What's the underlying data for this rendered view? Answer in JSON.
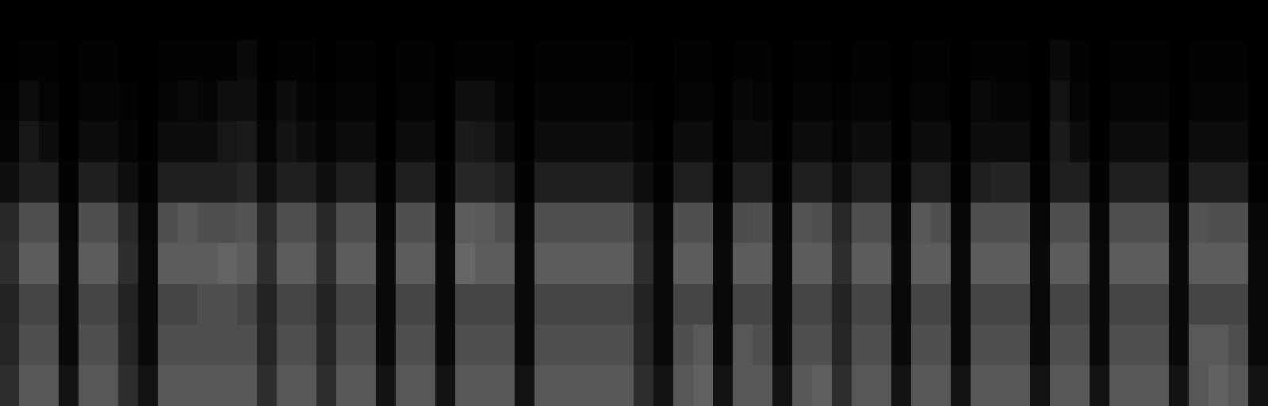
{
  "chart_data": {
    "type": "heatmap",
    "color": "#ffffff",
    "zlim": [
      0,
      100
    ],
    "tick_labels": false,
    "z": [
      [
        0,
        0,
        0,
        0,
        0,
        0,
        0,
        0,
        0,
        0,
        0,
        0,
        0,
        0,
        0,
        0,
        0,
        0,
        0,
        0,
        0,
        0,
        0,
        0,
        0,
        0,
        0,
        0,
        0,
        0,
        0,
        0,
        0,
        0,
        0,
        0,
        0,
        0,
        0,
        0,
        0,
        0,
        0,
        0,
        0,
        0,
        0,
        0,
        0,
        0,
        0,
        0,
        0,
        0,
        0,
        0,
        0,
        0,
        0,
        0,
        0,
        0,
        0,
        0
      ],
      [
        0,
        1,
        1,
        0,
        1,
        1,
        0,
        0,
        1,
        1,
        1,
        1,
        4,
        0,
        1,
        1,
        0,
        1,
        1,
        0,
        1,
        1,
        0,
        1,
        1,
        1,
        0,
        1,
        1,
        1,
        1,
        1,
        0,
        0,
        1,
        1,
        0,
        1,
        1,
        0,
        1,
        1,
        0,
        1,
        1,
        0,
        1,
        1,
        0,
        1,
        1,
        1,
        0,
        4,
        1,
        0,
        1,
        1,
        1,
        0,
        1,
        1,
        1,
        0
      ],
      [
        1,
        5,
        2,
        0,
        2,
        2,
        1,
        0,
        2,
        4,
        2,
        6,
        6,
        1,
        5,
        2,
        1,
        2,
        2,
        0,
        2,
        2,
        0,
        6,
        6,
        2,
        0,
        2,
        2,
        2,
        2,
        2,
        1,
        0,
        2,
        2,
        0,
        3,
        2,
        0,
        2,
        2,
        1,
        2,
        2,
        0,
        2,
        2,
        0,
        4,
        2,
        2,
        0,
        7,
        2,
        0,
        2,
        2,
        2,
        0,
        2,
        2,
        2,
        0
      ],
      [
        2,
        9,
        5,
        0,
        5,
        5,
        2,
        0,
        5,
        5,
        5,
        9,
        10,
        2,
        8,
        5,
        2,
        5,
        5,
        0,
        5,
        5,
        0,
        10,
        9,
        5,
        0,
        5,
        5,
        5,
        5,
        5,
        2,
        0,
        5,
        5,
        0,
        5,
        5,
        0,
        5,
        5,
        2,
        5,
        5,
        0,
        5,
        5,
        0,
        5,
        5,
        5,
        0,
        10,
        5,
        0,
        5,
        5,
        5,
        0,
        5,
        5,
        5,
        0
      ],
      [
        6,
        12,
        12,
        1,
        12,
        12,
        6,
        1,
        12,
        12,
        12,
        12,
        15,
        6,
        12,
        12,
        6,
        12,
        12,
        1,
        12,
        12,
        1,
        15,
        15,
        12,
        1,
        12,
        12,
        12,
        12,
        12,
        6,
        1,
        12,
        12,
        1,
        12,
        12,
        1,
        12,
        12,
        6,
        12,
        12,
        1,
        12,
        12,
        1,
        12,
        14,
        14,
        1,
        12,
        12,
        1,
        12,
        12,
        12,
        1,
        12,
        12,
        12,
        1
      ],
      [
        16,
        31,
        31,
        3,
        31,
        31,
        16,
        3,
        31,
        34,
        31,
        31,
        33,
        16,
        31,
        31,
        16,
        31,
        31,
        3,
        31,
        31,
        3,
        36,
        35,
        31,
        3,
        31,
        31,
        31,
        31,
        31,
        16,
        3,
        31,
        31,
        3,
        30,
        31,
        3,
        33,
        31,
        16,
        31,
        31,
        3,
        34,
        31,
        3,
        31,
        31,
        31,
        3,
        31,
        31,
        3,
        31,
        31,
        31,
        3,
        33,
        31,
        31,
        3
      ],
      [
        18,
        36,
        36,
        4,
        36,
        36,
        18,
        4,
        36,
        36,
        36,
        39,
        36,
        18,
        36,
        36,
        18,
        36,
        36,
        4,
        36,
        36,
        4,
        40,
        36,
        36,
        4,
        36,
        36,
        36,
        36,
        36,
        18,
        4,
        36,
        36,
        4,
        36,
        36,
        4,
        36,
        36,
        18,
        36,
        36,
        4,
        36,
        36,
        4,
        36,
        36,
        36,
        4,
        36,
        36,
        4,
        36,
        36,
        36,
        4,
        36,
        36,
        36,
        4
      ],
      [
        14,
        27,
        27,
        4,
        27,
        27,
        14,
        4,
        27,
        27,
        31,
        31,
        27,
        14,
        27,
        27,
        14,
        27,
        27,
        4,
        27,
        27,
        4,
        27,
        27,
        27,
        4,
        27,
        27,
        27,
        27,
        27,
        14,
        4,
        27,
        27,
        4,
        27,
        27,
        4,
        27,
        27,
        14,
        27,
        27,
        4,
        27,
        27,
        4,
        27,
        27,
        27,
        4,
        27,
        27,
        4,
        27,
        27,
        27,
        4,
        27,
        27,
        27,
        4
      ],
      [
        15,
        31,
        31,
        4,
        31,
        31,
        15,
        4,
        31,
        31,
        31,
        31,
        31,
        15,
        31,
        31,
        15,
        31,
        31,
        4,
        31,
        31,
        4,
        31,
        31,
        31,
        4,
        31,
        31,
        31,
        31,
        31,
        15,
        4,
        31,
        35,
        4,
        34,
        31,
        4,
        31,
        31,
        15,
        31,
        31,
        4,
        31,
        31,
        4,
        31,
        31,
        31,
        4,
        31,
        31,
        4,
        31,
        31,
        31,
        4,
        35,
        35,
        31,
        4
      ],
      [
        18,
        34,
        34,
        7,
        34,
        34,
        18,
        7,
        34,
        34,
        34,
        34,
        34,
        18,
        34,
        34,
        18,
        34,
        34,
        7,
        34,
        34,
        7,
        34,
        34,
        34,
        7,
        34,
        34,
        34,
        34,
        34,
        18,
        7,
        34,
        38,
        7,
        34,
        34,
        7,
        34,
        37,
        18,
        34,
        34,
        7,
        34,
        34,
        7,
        34,
        34,
        34,
        7,
        34,
        34,
        7,
        34,
        34,
        34,
        7,
        34,
        38,
        34,
        7
      ]
    ]
  }
}
